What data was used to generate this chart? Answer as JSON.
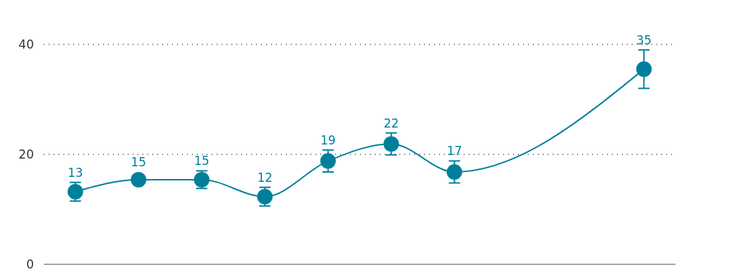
{
  "chart_data": {
    "type": "line",
    "categories": [
      null,
      null,
      null,
      null,
      null,
      null,
      null,
      null,
      null,
      null
    ],
    "series": [
      {
        "color": "#007f9c",
        "values": [
          13.2,
          15.4,
          15.4,
          12.3,
          18.8,
          21.9,
          16.8,
          null,
          null,
          35.5
        ],
        "errors": [
          1.7,
          null,
          1.6,
          1.7,
          2.0,
          2.0,
          2.0,
          null,
          null,
          3.5
        ],
        "value_labels": [
          "13",
          "15",
          "15",
          "12",
          "19",
          "22",
          "17",
          null,
          null,
          "35"
        ]
      }
    ],
    "ylim": [
      0,
      40
    ],
    "yticks": [
      0,
      20,
      40
    ],
    "grid": "y",
    "marker": "circle",
    "line_style": "solid"
  }
}
